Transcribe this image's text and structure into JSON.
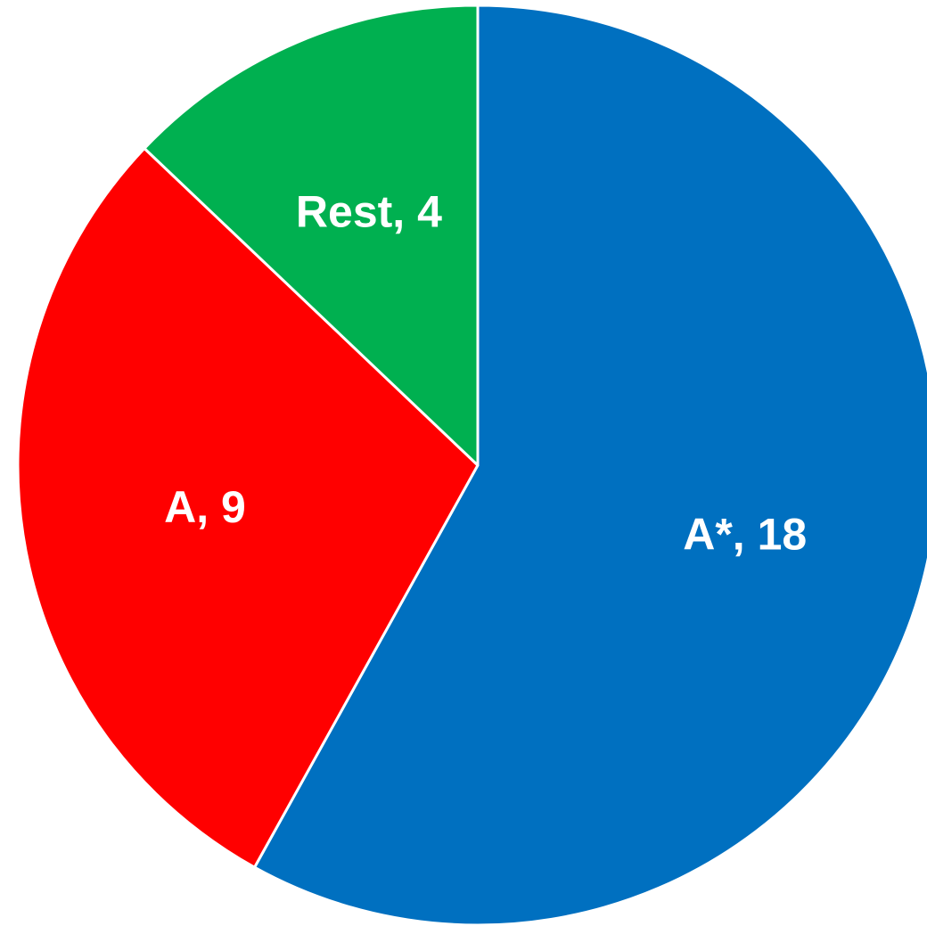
{
  "chart_data": {
    "type": "pie",
    "categories": [
      "A*",
      "A",
      "Rest"
    ],
    "values": [
      18,
      9,
      4
    ],
    "colors": [
      "#0070c0",
      "#ff0000",
      "#00b050"
    ],
    "slice_labels": [
      "A*, 18",
      "A, 9",
      "Rest, 4"
    ],
    "start": "12 o'clock",
    "direction": "clockwise",
    "legend": "none"
  }
}
